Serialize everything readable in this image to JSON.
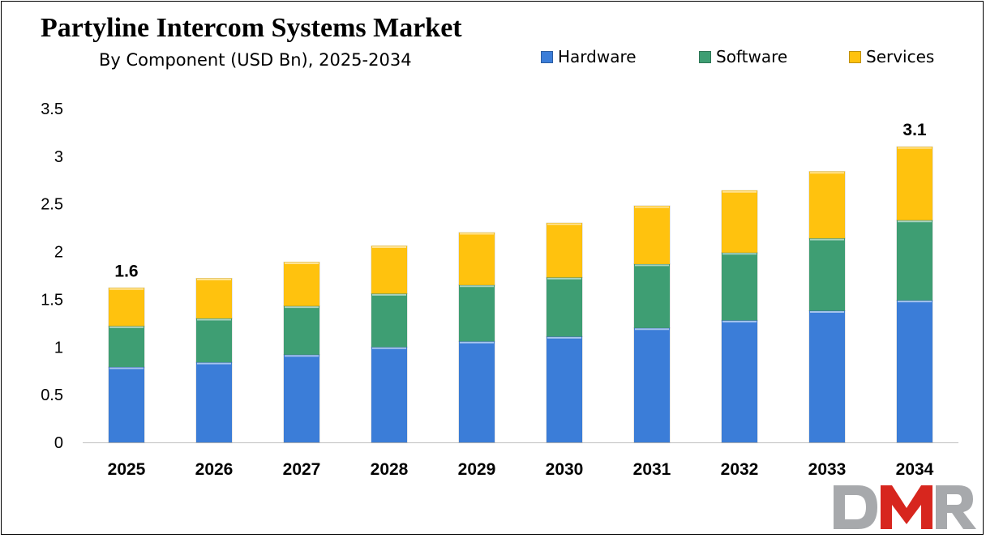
{
  "chart_data": {
    "type": "bar",
    "stacked": true,
    "title": "Partyline Intercom Systems Market",
    "subtitle": "By Component (USD Bn), 2025-2034",
    "categories": [
      "2025",
      "2026",
      "2027",
      "2028",
      "2029",
      "2030",
      "2031",
      "2032",
      "2033",
      "2034"
    ],
    "series": [
      {
        "name": "Hardware",
        "color": "#3B7DD8",
        "values": [
          0.79,
          0.84,
          0.92,
          1.0,
          1.06,
          1.11,
          1.2,
          1.28,
          1.38,
          1.49
        ]
      },
      {
        "name": "Software",
        "color": "#3E9E73",
        "values": [
          0.43,
          0.46,
          0.51,
          0.56,
          0.59,
          0.62,
          0.67,
          0.71,
          0.76,
          0.84
        ]
      },
      {
        "name": "Services",
        "color": "#FFC20E",
        "values": [
          0.4,
          0.42,
          0.46,
          0.5,
          0.55,
          0.57,
          0.61,
          0.65,
          0.7,
          0.77
        ]
      }
    ],
    "data_labels": [
      {
        "category": "2025",
        "text": "1.6"
      },
      {
        "category": "2034",
        "text": "3.1"
      }
    ],
    "yticks": [
      "0",
      "0.5",
      "1",
      "1.5",
      "2",
      "2.5",
      "3",
      "3.5"
    ],
    "ylim": [
      0,
      3.5
    ],
    "legend_position": "top-right",
    "grid": false
  },
  "watermark": {
    "text": "DMR",
    "colors": [
      "#a7a9ac",
      "#d7261e",
      "#a7a9ac"
    ]
  }
}
